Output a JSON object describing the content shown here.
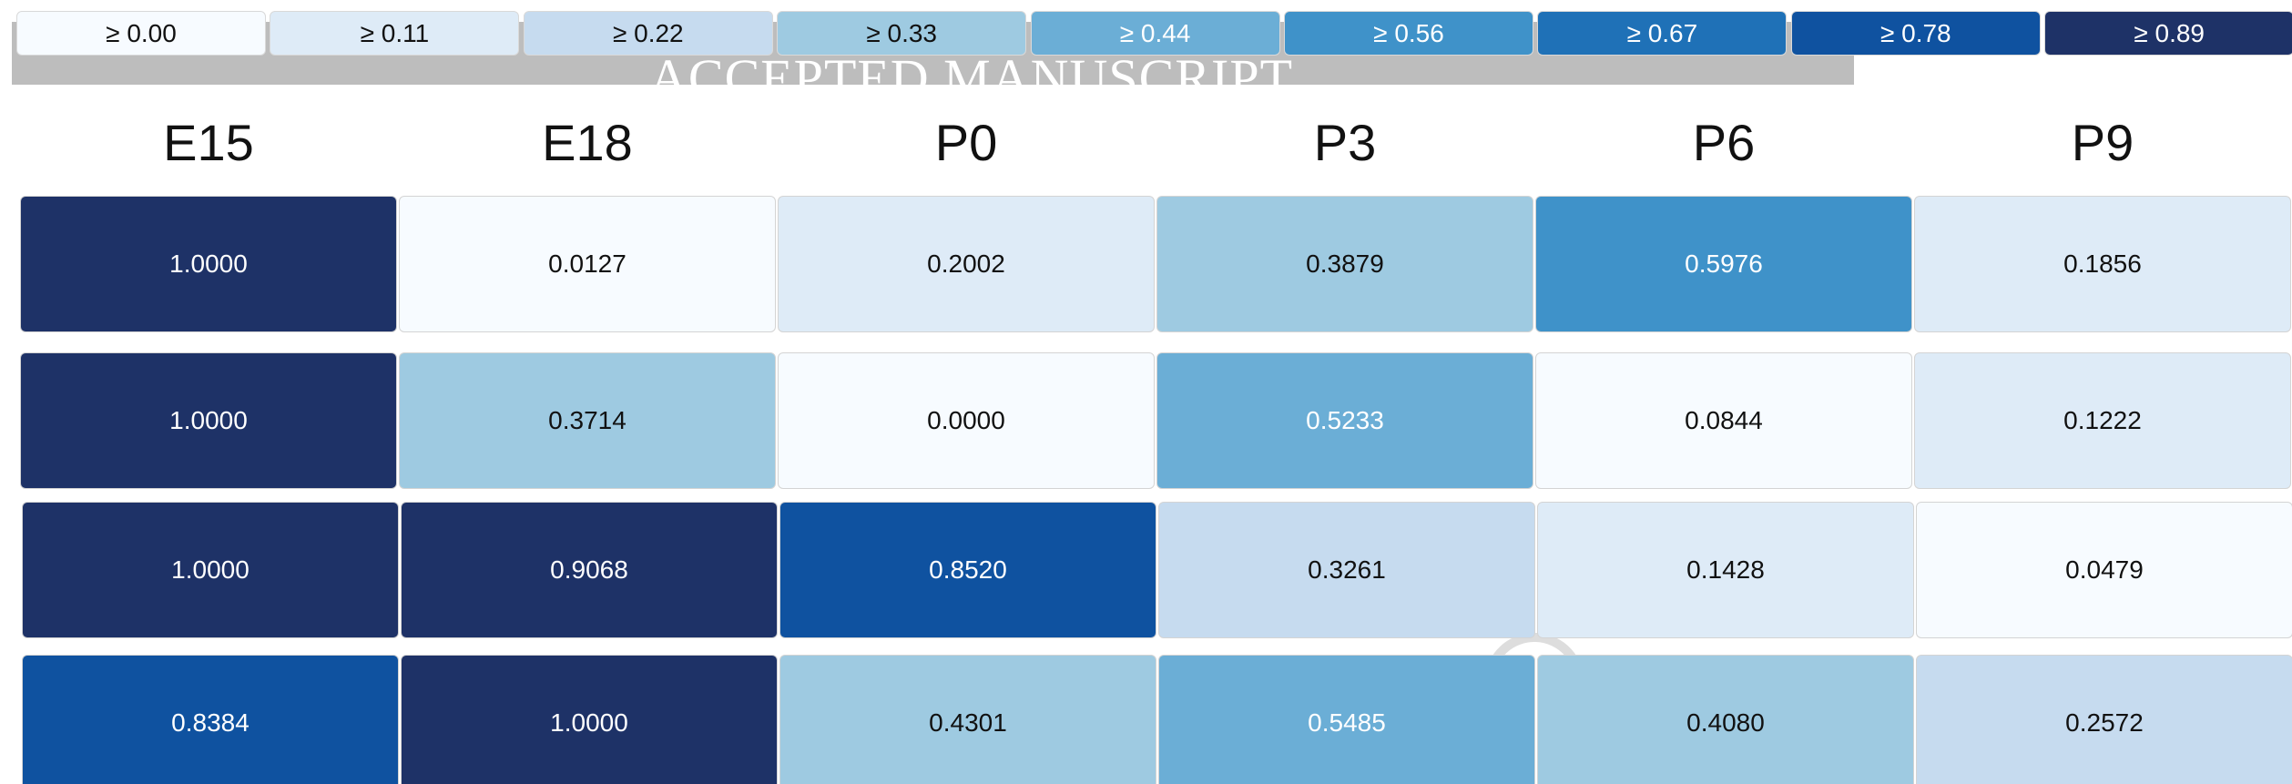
{
  "chart_data": {
    "type": "heatmap",
    "legend": {
      "labels": [
        "≥ 0.00",
        "≥ 0.11",
        "≥ 0.22",
        "≥ 0.33",
        "≥ 0.44",
        "≥ 0.56",
        "≥ 0.67",
        "≥ 0.78",
        "≥ 0.89"
      ],
      "thresholds": [
        0.0,
        0.11,
        0.22,
        0.33,
        0.44,
        0.56,
        0.67,
        0.78,
        0.89
      ],
      "colors": [
        "#f7fbff",
        "#deebf7",
        "#c6dbef",
        "#9ecae1",
        "#6baed6",
        "#3f92c9",
        "#1f71b7",
        "#0f52a0",
        "#1e3267"
      ],
      "placement": "top"
    },
    "columns": [
      "E15",
      "E18",
      "P0",
      "P3",
      "P6",
      "P9"
    ],
    "rows": [
      [
        "1.0000",
        "0.0127",
        "0.2002",
        "0.3879",
        "0.5976",
        "0.1856"
      ],
      [
        "1.0000",
        "0.3714",
        "0.0000",
        "0.5233",
        "0.0844",
        "0.1222"
      ],
      [
        "1.0000",
        "0.9068",
        "0.8520",
        "0.3261",
        "0.1428",
        "0.0479"
      ],
      [
        "0.8384",
        "1.0000",
        "0.4301",
        "0.5485",
        "0.4080",
        "0.2572"
      ]
    ]
  },
  "watermark": {
    "text": "ACCEPTED MANUSCRIPT",
    "band_color": "#bdbdbd"
  },
  "colors": {
    "text_dark": "#111111",
    "text_light": "#ffffff"
  }
}
